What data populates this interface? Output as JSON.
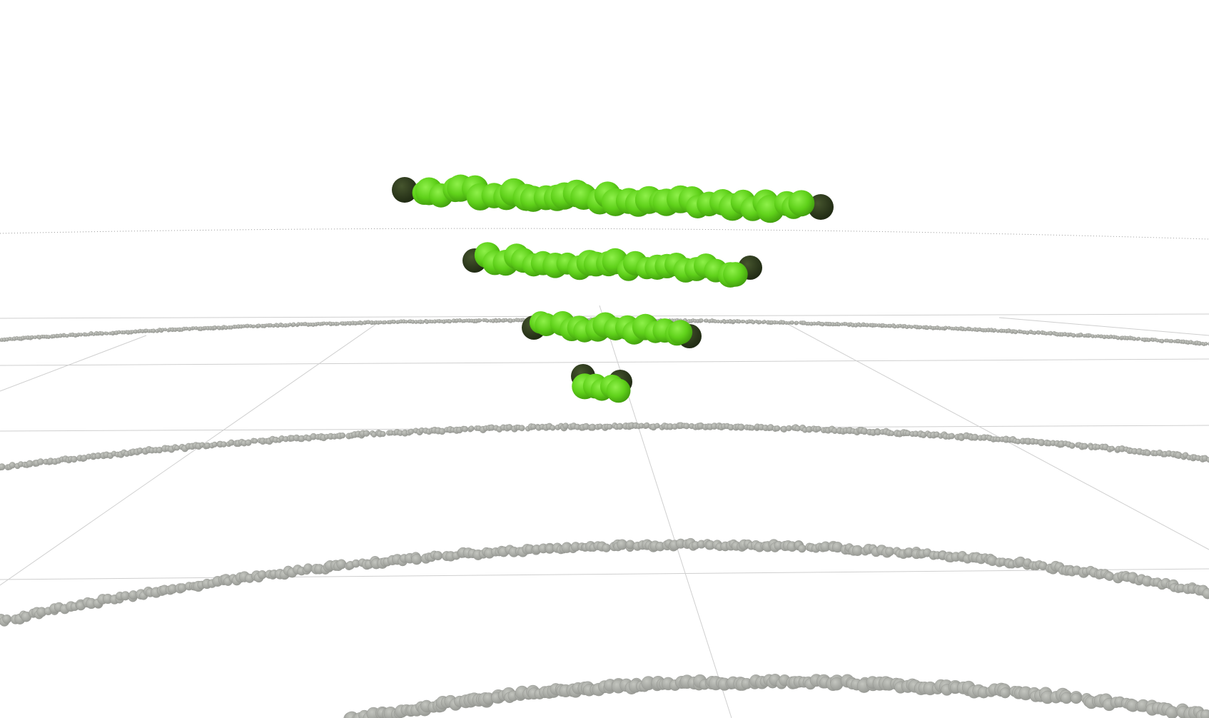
{
  "scene": {
    "background_color": "#ffffff",
    "grid_color": "#cfcfcf",
    "ring_color": "#a9aba5",
    "ring_edge_color": "#8f918c",
    "horizon_color": "#9a9a9a",
    "point_color": "#5fd11a",
    "point_highlight_color": "#8ef04a",
    "point_shadow_color": "#3f9a0c",
    "endpoint_color": "#2c3a1a",
    "ring_count": 4,
    "point_row_count": 4
  }
}
